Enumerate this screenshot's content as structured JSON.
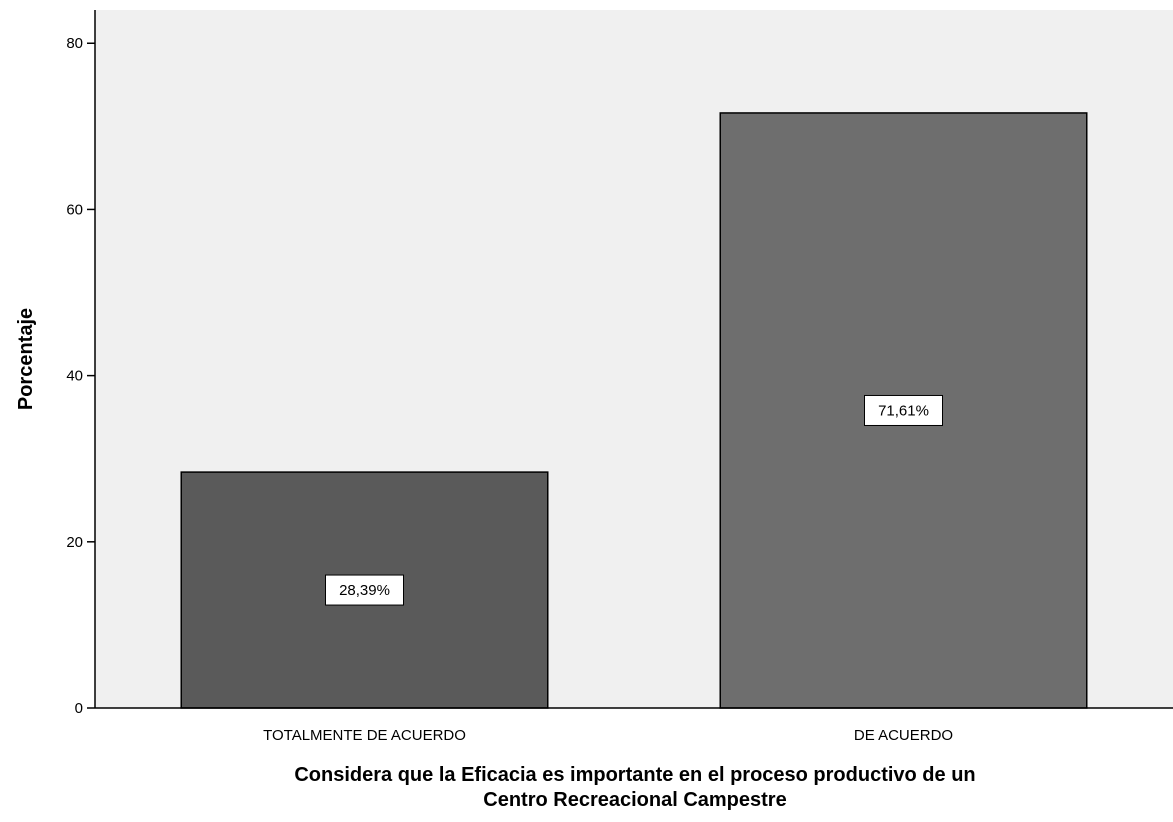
{
  "chart_data": {
    "type": "bar",
    "title": "",
    "categories": [
      "TOTALMENTE DE ACUERDO",
      "DE ACUERDO"
    ],
    "values": [
      28.39,
      71.61
    ],
    "data_labels": [
      "28,39%",
      "71,61%"
    ],
    "xlabel": "Considera que la Eficacia es importante en el proceso productivo de un Centro Recreacional Campestre",
    "xlabel_lines": [
      "Considera que la Eficacia es importante en el proceso productivo de un",
      "Centro Recreacional Campestre"
    ],
    "ylabel": "Porcentaje",
    "ylim": [
      0,
      84
    ],
    "yticks": [
      0,
      20,
      40,
      60,
      80
    ],
    "grid": false,
    "legend": "none",
    "colors": {
      "plot_background": "#f0f0f0",
      "bar_fills": [
        "#5a5a5a",
        "#6e6e6e"
      ],
      "bar_stroke": "#000000",
      "axis": "#000000",
      "label_box": "#ffffff"
    }
  }
}
